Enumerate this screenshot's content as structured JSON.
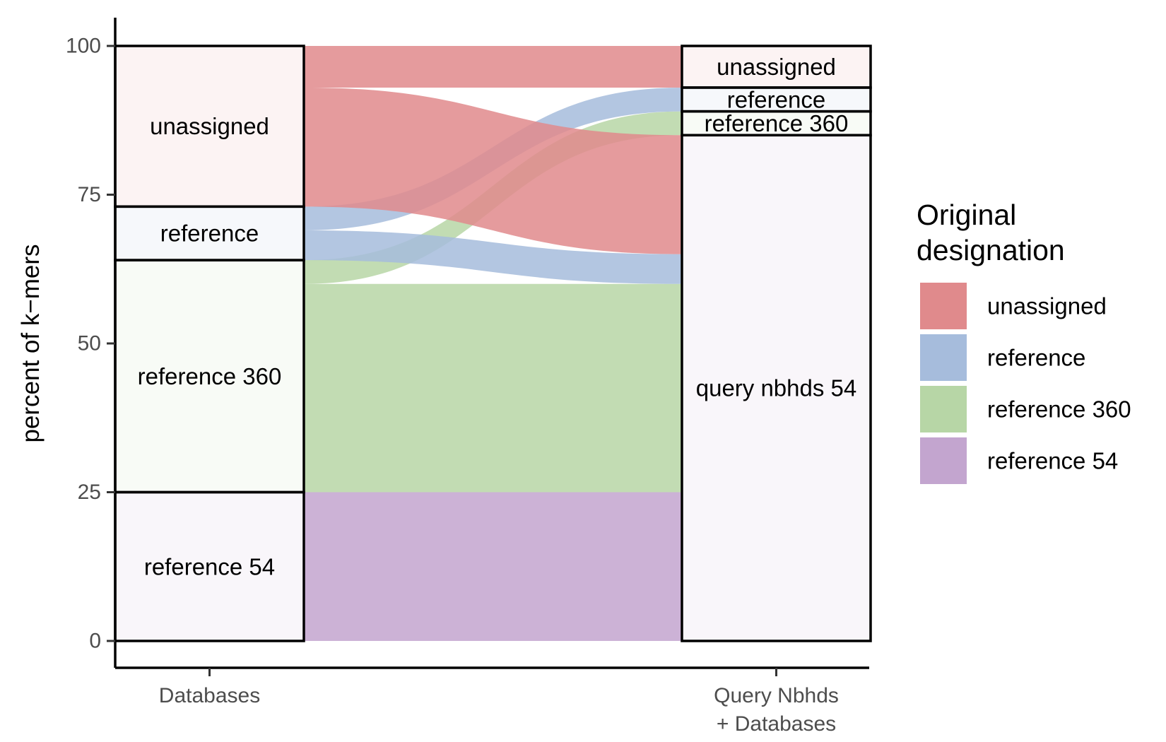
{
  "chart_data": {
    "type": "alluvial",
    "ylabel": "percent of k−mers",
    "ylim": [
      0,
      100
    ],
    "yticks": [
      0,
      25,
      50,
      75,
      100
    ],
    "axes": [
      {
        "label_lines": [
          "Databases"
        ]
      },
      {
        "label_lines": [
          "Query Nbhds",
          "+ Databases"
        ]
      }
    ],
    "strata": [
      [
        {
          "label": "reference 54",
          "from": 0,
          "to": 25,
          "fill_key": "reference 54"
        },
        {
          "label": "reference 360",
          "from": 25,
          "to": 64,
          "fill_key": "reference 360"
        },
        {
          "label": "reference",
          "from": 64,
          "to": 73,
          "fill_key": "reference"
        },
        {
          "label": "unassigned",
          "from": 73,
          "to": 100,
          "fill_key": "unassigned"
        }
      ],
      [
        {
          "label": "query nbhds 54",
          "from": 0,
          "to": 85,
          "fill_key": "reference 54"
        },
        {
          "label": "reference 360",
          "from": 85,
          "to": 89,
          "fill_key": "reference 360"
        },
        {
          "label": "reference",
          "from": 89,
          "to": 93,
          "fill_key": "reference"
        },
        {
          "label": "unassigned",
          "from": 93,
          "to": 100,
          "fill_key": "unassigned"
        }
      ]
    ],
    "flows": [
      {
        "group": "reference 54",
        "value": 25,
        "left": [
          0,
          25
        ],
        "right": [
          0,
          25
        ]
      },
      {
        "group": "reference 360",
        "value": 35,
        "left": [
          25,
          60
        ],
        "right": [
          25,
          60
        ]
      },
      {
        "group": "reference 360",
        "value": 4,
        "left": [
          60,
          64
        ],
        "right": [
          85,
          89
        ]
      },
      {
        "group": "reference",
        "value": 5,
        "left": [
          64,
          69
        ],
        "right": [
          60,
          65
        ]
      },
      {
        "group": "reference",
        "value": 4,
        "left": [
          69,
          73
        ],
        "right": [
          89,
          93
        ]
      },
      {
        "group": "unassigned",
        "value": 20,
        "left": [
          73,
          93
        ],
        "right": [
          65,
          85
        ]
      },
      {
        "group": "unassigned",
        "value": 7,
        "left": [
          93,
          100
        ],
        "right": [
          93,
          100
        ]
      }
    ],
    "legend": {
      "title_lines": [
        "Original",
        "designation"
      ],
      "position": "right",
      "entries": [
        {
          "label": "unassigned",
          "color": "#e08a8c"
        },
        {
          "label": "reference",
          "color": "#a6bcdc"
        },
        {
          "label": "reference 360",
          "color": "#b7d6a6"
        },
        {
          "label": "reference 54",
          "color": "#c3a5cf"
        }
      ]
    },
    "stratum_fill_alpha": 0.1,
    "grid": false
  }
}
